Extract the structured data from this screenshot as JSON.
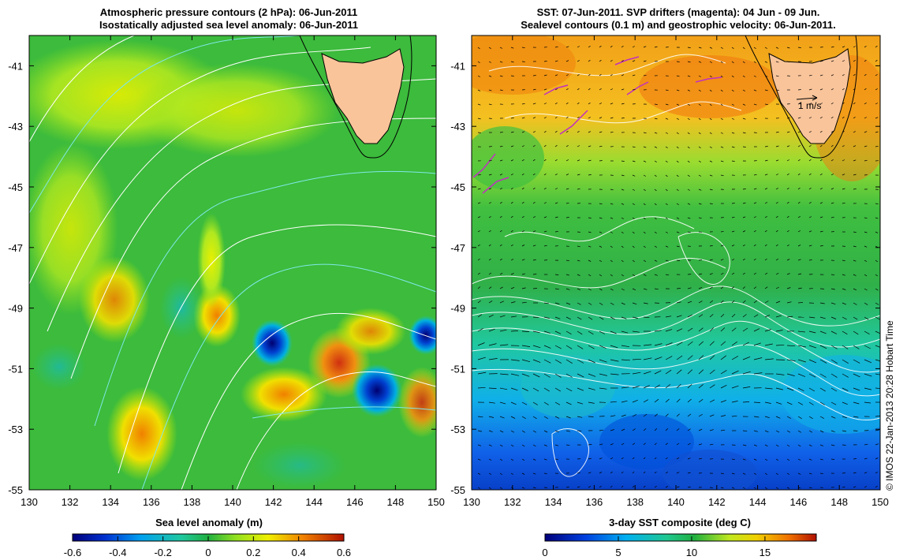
{
  "left_panel": {
    "title_line1": "Atmospheric pressure contours (2 hPa): 06-Jun-2011",
    "title_line2": "Isostatically adjusted sea level anomaly: 06-Jun-2011",
    "x_ticks": [
      "130",
      "132",
      "134",
      "136",
      "138",
      "140",
      "142",
      "144",
      "146",
      "148",
      "150"
    ],
    "y_ticks": [
      "-41",
      "-43",
      "-45",
      "-47",
      "-49",
      "-51",
      "-53",
      "-55"
    ],
    "colorbar": {
      "title": "Sea level anomaly (m)",
      "ticks": [
        "-0.6",
        "-0.4",
        "-0.2",
        "0",
        "0.2",
        "0.4",
        "0.6"
      ],
      "range": [
        -0.6,
        0.6
      ]
    }
  },
  "right_panel": {
    "title_line1": "SST: 07-Jun-2011. SVP drifters (magenta): 04 Jun - 09 Jun.",
    "title_line2": "Sealevel contours (0.1 m) and geostrophic velocity: 06-Jun-2011.",
    "x_ticks": [
      "130",
      "132",
      "134",
      "136",
      "138",
      "140",
      "142",
      "144",
      "146",
      "148",
      "150"
    ],
    "y_ticks": [
      "-41",
      "-43",
      "-45",
      "-47",
      "-49",
      "-51",
      "-53",
      "-55"
    ],
    "scale_label": "1 m/s",
    "colorbar": {
      "title": "3-day SST composite (deg C)",
      "ticks": [
        "0",
        "5",
        "10",
        "15"
      ],
      "range": [
        0,
        18.5
      ]
    }
  },
  "copyright": "© IMOS 22-Jan-2013 20:28 Hobart Time",
  "map_extent": {
    "lon": [
      130,
      150
    ],
    "lat": [
      -55,
      -40
    ]
  },
  "colors": {
    "land": "#f9c49a",
    "pressure_contour": "#ffffff",
    "pressure_contour_alt": "#7fe8e8",
    "drifter": "#c030c0",
    "vector": "#000000"
  }
}
